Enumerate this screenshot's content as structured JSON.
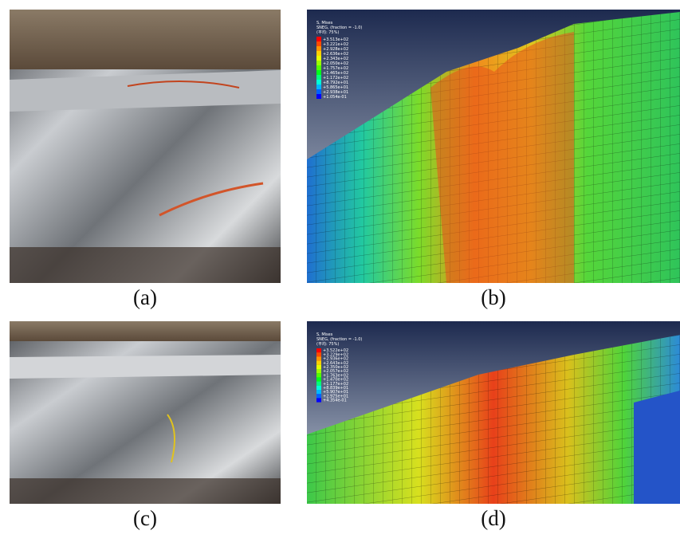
{
  "panels": [
    {
      "label": "(a)"
    },
    {
      "label": "(b)",
      "legend": {
        "title": "S, Mises",
        "subtitle": "SNEG, (fraction = -1.0)",
        "note": "(平均: 75%)",
        "values": [
          "+3.513e+02",
          "+3.221e+02",
          "+2.928e+02",
          "+2.636e+02",
          "+2.343e+02",
          "+2.050e+02",
          "+1.757e+02",
          "+1.465e+02",
          "+1.172e+02",
          "+8.792e+01",
          "+5.865e+01",
          "+2.938e+01",
          "+1.054e-01"
        ]
      }
    },
    {
      "label": "(c)"
    },
    {
      "label": "(d)",
      "legend": {
        "title": "S, Mises",
        "subtitle": "SNEG, (fraction = -1.0)",
        "note": "(平均: 75%)",
        "values": [
          "+3.522e+02",
          "+3.229e+02",
          "+2.936e+02",
          "+2.643e+02",
          "+2.350e+02",
          "+2.057e+02",
          "+1.763e+02",
          "+1.470e+02",
          "+1.177e+02",
          "+8.839e+01",
          "+5.907e+01",
          "+2.975e+01",
          "+4.354e-01"
        ]
      }
    }
  ]
}
